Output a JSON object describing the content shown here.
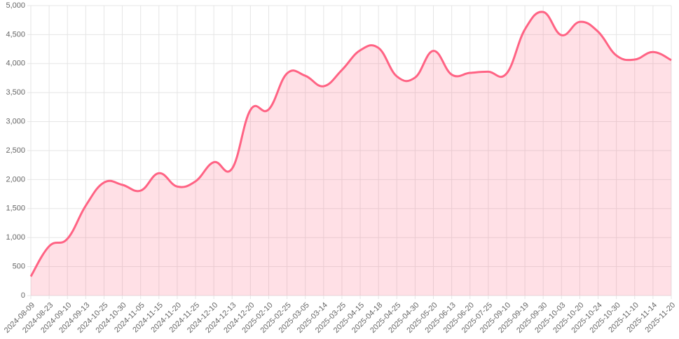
{
  "chart_data": {
    "type": "line",
    "categories": [
      "2024-08-09",
      "2024-08-23",
      "2024-09-10",
      "2024-09-13",
      "2024-10-25",
      "2024-10-30",
      "2024-11-05",
      "2024-11-15",
      "2024-11-20",
      "2024-11-25",
      "2024-12-10",
      "2024-12-13",
      "2024-12-20",
      "2025-02-10",
      "2025-02-25",
      "2025-03-05",
      "2025-03-14",
      "2025-03-25",
      "2025-04-15",
      "2025-04-18",
      "2025-04-25",
      "2025-04-30",
      "2025-05-20",
      "2025-06-13",
      "2025-06-20",
      "2025-07-25",
      "2025-09-10",
      "2025-09-19",
      "2025-09-30",
      "2025-10-03",
      "2025-10-20",
      "2025-10-24",
      "2025-10-30",
      "2025-11-10",
      "2025-11-14",
      "2025-11-20"
    ],
    "values": [
      330,
      850,
      980,
      1550,
      1950,
      1910,
      1810,
      2110,
      1880,
      1970,
      2300,
      2190,
      3200,
      3210,
      3830,
      3790,
      3610,
      3890,
      4230,
      4270,
      3780,
      3760,
      4220,
      3810,
      3840,
      3860,
      3830,
      4590,
      4890,
      4490,
      4720,
      4550,
      4140,
      4070,
      4200,
      4060
    ],
    "color": "#ff6384",
    "fill": "rgba(255,99,132,0.2)",
    "ylim": [
      0,
      5000
    ],
    "yticks": [
      0,
      500,
      {
        "value": 1000,
        "label": "1,000"
      },
      {
        "value": 1500,
        "label": "1,500"
      },
      {
        "value": 2000,
        "label": "2,000"
      },
      {
        "value": 2500,
        "label": "2,500"
      },
      {
        "value": 3000,
        "label": "3,000"
      },
      {
        "value": 3500,
        "label": "3,500"
      },
      {
        "value": 4000,
        "label": "4,000"
      },
      {
        "value": 4500,
        "label": "4,500"
      },
      {
        "value": 5000,
        "label": "5,000"
      }
    ],
    "grid": true
  }
}
